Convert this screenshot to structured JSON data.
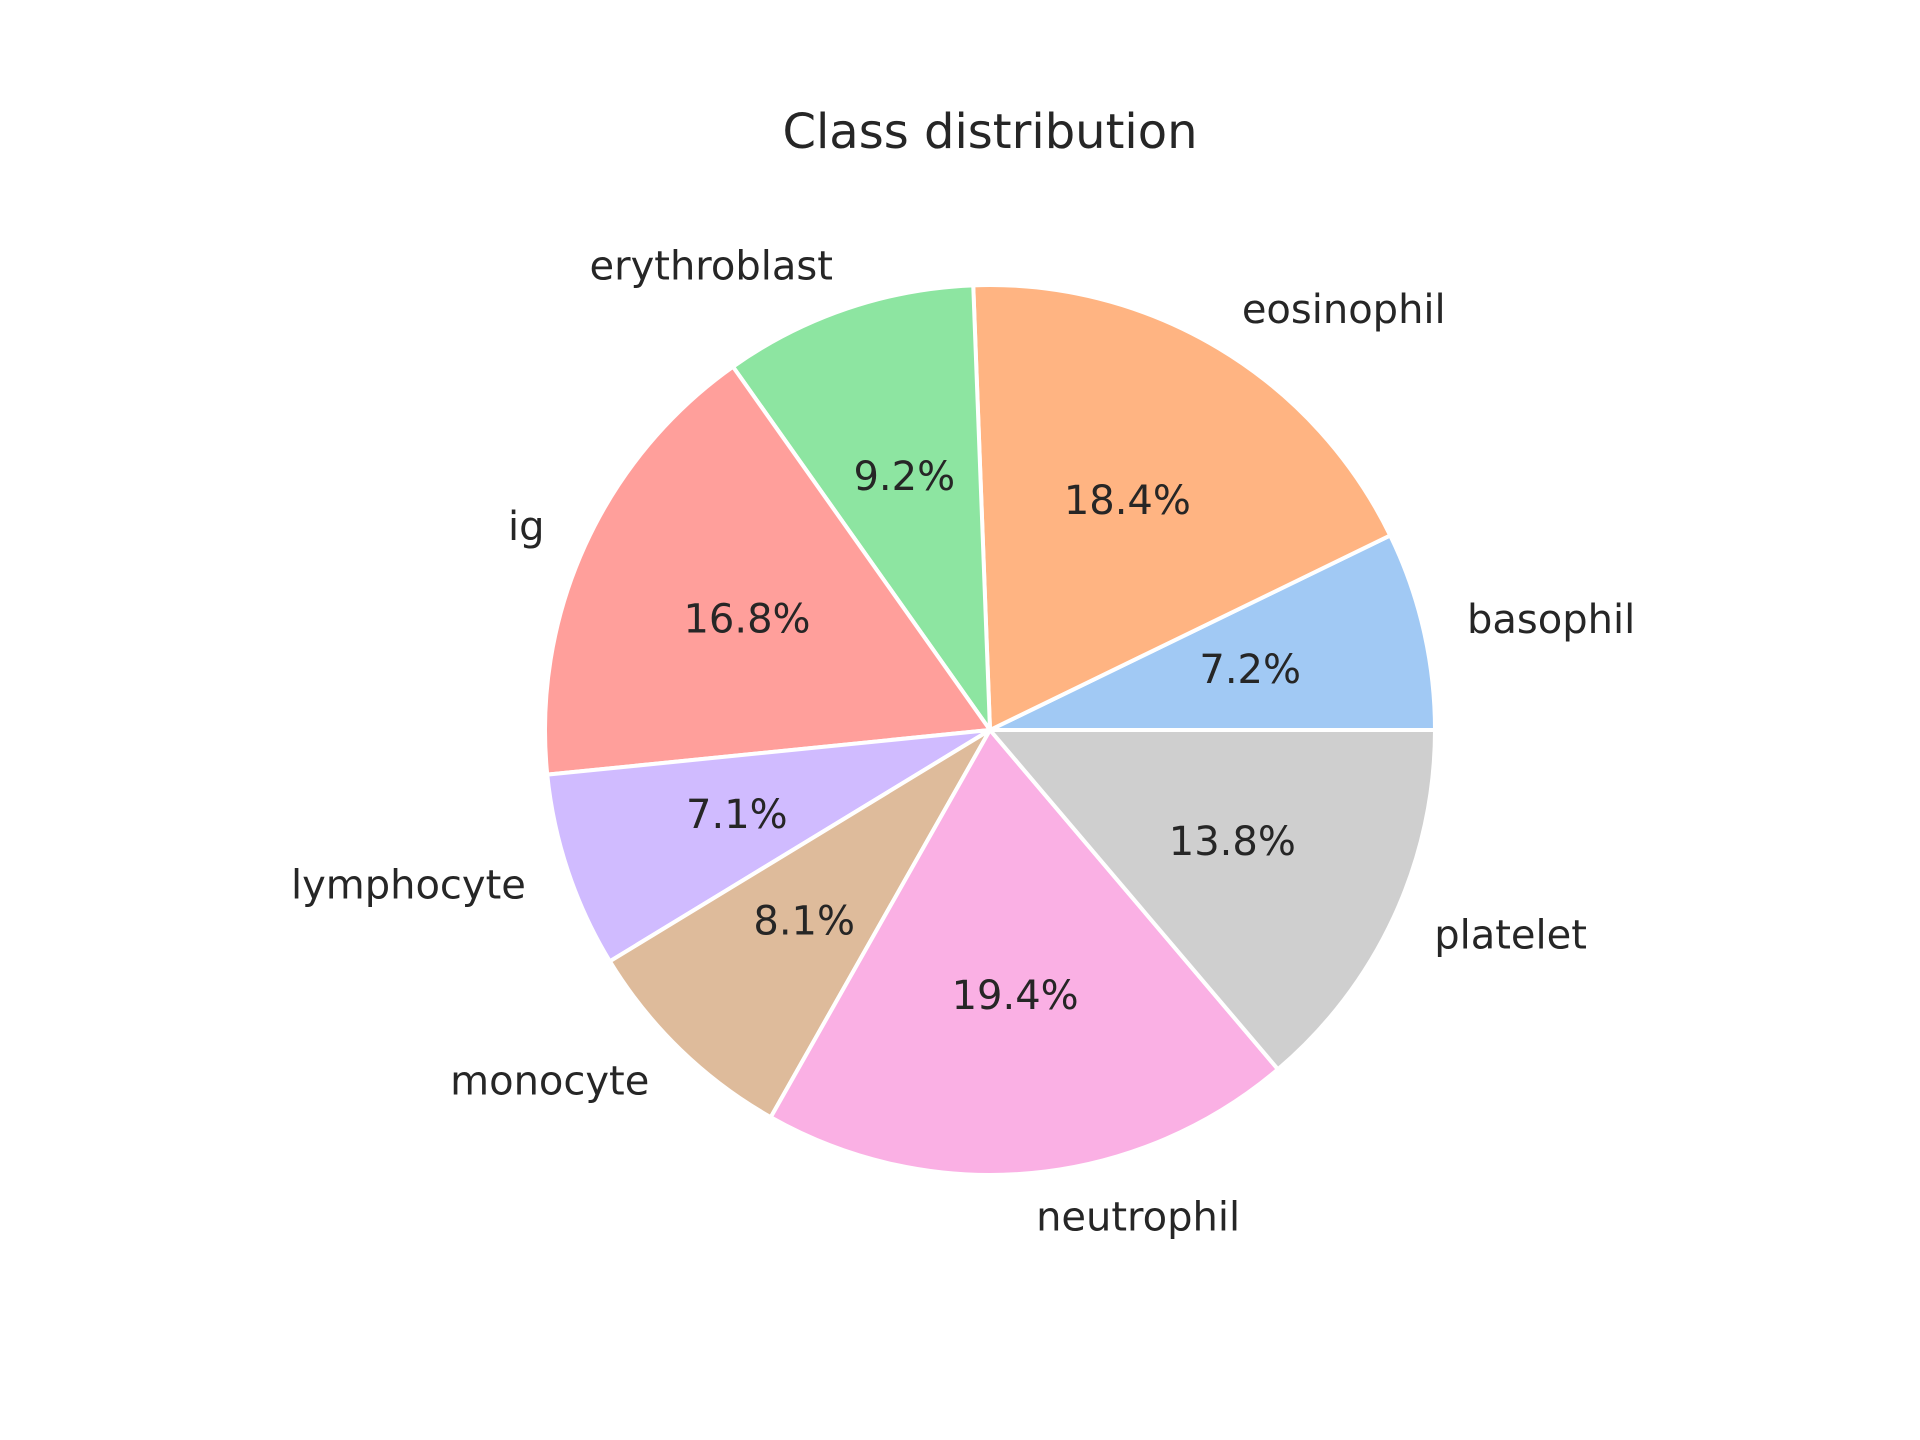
{
  "chart_data": {
    "type": "pie",
    "title": "Class distribution",
    "start_angle_deg": 0,
    "direction": "counterclockwise",
    "slices": [
      {
        "label": "basophil",
        "value": 7.2,
        "pct_text": "7.2%",
        "color": "#a1c9f4"
      },
      {
        "label": "eosinophil",
        "value": 18.4,
        "pct_text": "18.4%",
        "color": "#ffb482"
      },
      {
        "label": "erythroblast",
        "value": 9.2,
        "pct_text": "9.2%",
        "color": "#8de5a1"
      },
      {
        "label": "ig",
        "value": 16.8,
        "pct_text": "16.8%",
        "color": "#ff9f9b"
      },
      {
        "label": "lymphocyte",
        "value": 7.1,
        "pct_text": "7.1%",
        "color": "#d0bbff"
      },
      {
        "label": "monocyte",
        "value": 8.1,
        "pct_text": "8.1%",
        "color": "#debb9b"
      },
      {
        "label": "neutrophil",
        "value": 19.4,
        "pct_text": "19.4%",
        "color": "#fab0e4"
      },
      {
        "label": "platelet",
        "value": 13.8,
        "pct_text": "13.8%",
        "color": "#cfcfcf"
      }
    ]
  }
}
